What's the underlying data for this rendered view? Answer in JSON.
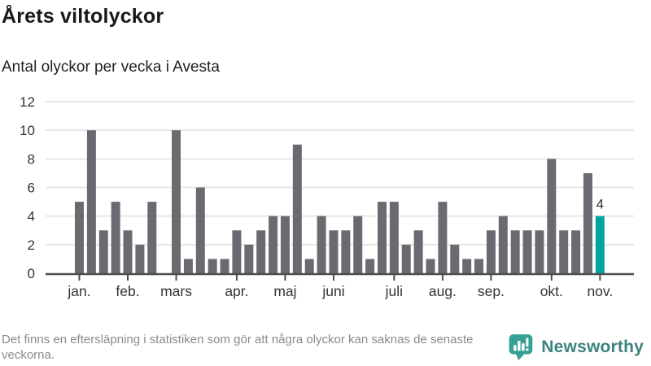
{
  "header": {
    "title": "Årets viltolyckor",
    "subtitle": "Antal olyckor per vecka i Avesta"
  },
  "footer": {
    "note": "Det finns en eftersläpning i statistiken som gör att några olyckor kan saknas de senaste veckorna.",
    "brand": "Newsworthy",
    "brand_color": "#3b837d",
    "brand_icon_color": "#35a095",
    "brand_icon": "bar-chart-speech-bubble-icon"
  },
  "chart_data": {
    "type": "bar",
    "title": "Årets viltolyckor",
    "subtitle": "Antal olyckor per vecka i Avesta",
    "xlabel": "",
    "ylabel": "",
    "grid": true,
    "legend": null,
    "ylim": [
      0,
      12
    ],
    "yticks": [
      0,
      2,
      4,
      6,
      8,
      10,
      12
    ],
    "values": [
      5,
      10,
      3,
      5,
      3,
      2,
      5,
      0,
      10,
      1,
      6,
      1,
      1,
      3,
      2,
      3,
      4,
      4,
      9,
      1,
      4,
      3,
      3,
      4,
      1,
      5,
      5,
      2,
      3,
      1,
      5,
      2,
      1,
      1,
      3,
      4,
      3,
      3,
      3,
      8,
      3,
      3,
      7,
      4
    ],
    "xticks": [
      {
        "label": "jan.",
        "index": 0
      },
      {
        "label": "feb.",
        "index": 4
      },
      {
        "label": "mars",
        "index": 8
      },
      {
        "label": "apr.",
        "index": 13
      },
      {
        "label": "maj",
        "index": 17
      },
      {
        "label": "juni",
        "index": 21
      },
      {
        "label": "juli",
        "index": 26
      },
      {
        "label": "aug.",
        "index": 30
      },
      {
        "label": "sep.",
        "index": 34
      },
      {
        "label": "okt.",
        "index": 39
      },
      {
        "label": "nov.",
        "index": 43
      }
    ],
    "highlight": {
      "index": 43,
      "label": "4",
      "color": "#00a5a0"
    },
    "bar_color": "#6a6a71",
    "grid_color": "#e7e7e7",
    "axis_color": "#4d4d4d",
    "text_color": "#333333",
    "annotation_color": "#333333"
  }
}
